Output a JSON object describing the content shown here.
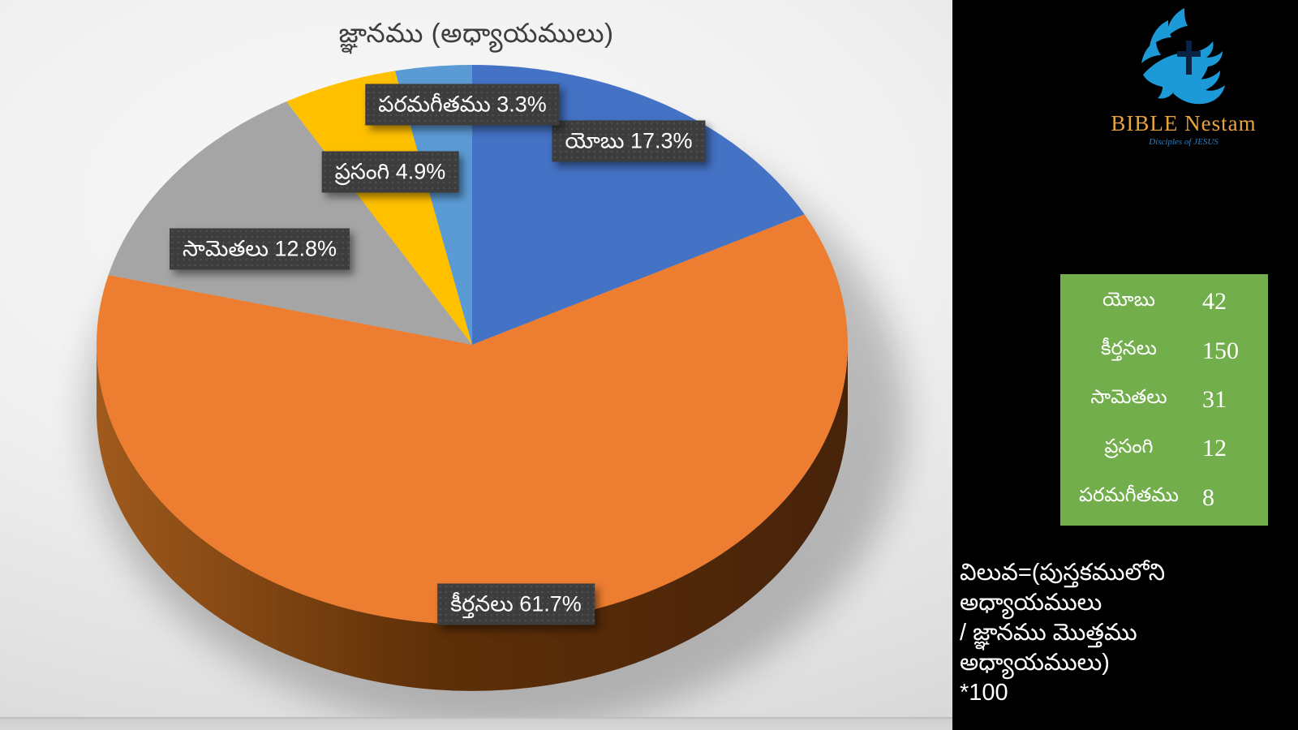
{
  "chart_data": {
    "type": "pie",
    "is_3d": true,
    "title": "జ్ఞానము (అధ్యాయములు)",
    "start_angle_deg": 0,
    "direction": "clockwise",
    "categories": [
      "యోబు",
      "కీర్తనలు",
      "సామెతలు",
      "ప్రసంగి",
      "పరమగీతము"
    ],
    "values": [
      42,
      150,
      31,
      12,
      8
    ],
    "percent_labels": [
      "17.3%",
      "61.7%",
      "12.8%",
      "4.9%",
      "3.3%"
    ],
    "colors": [
      "#4472C4",
      "#ED7D31",
      "#A5A5A5",
      "#FFC000",
      "#5B9BD5"
    ],
    "legend_position": "none",
    "data_label_format": "category percent"
  },
  "sidebar": {
    "logo_title": "BIBLE Nestam",
    "logo_subtitle": "Disciples of JESUS",
    "table_rows": [
      {
        "book": "యోబు",
        "chapters": "42"
      },
      {
        "book": "కీర్తనలు",
        "chapters": "150"
      },
      {
        "book": "సామెతలు",
        "chapters": "31"
      },
      {
        "book": "ప్రసంగి",
        "chapters": "12"
      },
      {
        "book": "పరమగీతము",
        "chapters": "8"
      }
    ],
    "formula": "విలువ=(పుస్తకములోని అధ్యాయములు\n/ జ్ఞానము మొత్తము అధ్యాయములు)\n*100"
  },
  "theme": {
    "title_text": "#3E3E3E",
    "label_box": "#3D3D3D",
    "table_green": "#72AE4B",
    "dove_blue": "#1B9AD7",
    "logo_gold": "#E8A33D",
    "cross_navy": "#0A2342",
    "rim_dark": "#5E2F08",
    "rim_light": "#A05A1C"
  }
}
